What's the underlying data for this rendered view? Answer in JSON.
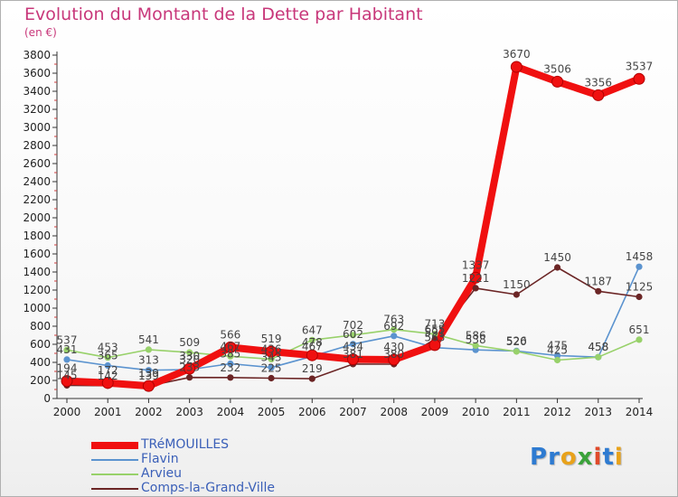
{
  "header": {
    "title": "Evolution du Montant de la Dette par Habitant",
    "unit": "(en €)"
  },
  "logo": {
    "text": "Proxiti",
    "letter_colors": [
      "#2e7bd1",
      "#2e7bd1",
      "#e8a21b",
      "#3aa23a",
      "#e04a2a",
      "#2e7bd1",
      "#e8a21b"
    ]
  },
  "chart_data": {
    "type": "line",
    "title": "Evolution du Montant de la Dette par Habitant",
    "subtitle": "(en €)",
    "xlabel": "",
    "ylabel": "",
    "x": [
      "2000",
      "2001",
      "2002",
      "2003",
      "2004",
      "2005",
      "2006",
      "2007",
      "2008",
      "2009",
      "2010",
      "2011",
      "2012",
      "2013",
      "2014"
    ],
    "ylim": [
      0,
      3800
    ],
    "yticks": [
      0,
      200,
      400,
      600,
      800,
      1000,
      1200,
      1400,
      1600,
      1800,
      2000,
      2200,
      2400,
      2600,
      2800,
      3000,
      3200,
      3400,
      3600,
      3800
    ],
    "grid": false,
    "legend_position": "bottom-left",
    "series": [
      {
        "name": "TRéMOUILLES",
        "color": "#f01010",
        "values": [
          194,
          172,
          139,
          330,
          566,
          519,
          478,
          434,
          430,
          591,
          1337,
          3670,
          3506,
          3356,
          3537
        ],
        "labels": [
          "194",
          "172",
          "139",
          "330",
          "566",
          "519",
          "478",
          "434",
          "430",
          "591",
          "1337",
          "3670",
          "3506",
          "3356",
          "3537"
        ]
      },
      {
        "name": "Flavin",
        "color": "#5b93cf",
        "values": [
          431,
          365,
          313,
          320,
          385,
          343,
          467,
          602,
          692,
          563,
          538,
          526,
          475,
          458,
          1458
        ],
        "labels": [
          "431",
          "365",
          "313",
          "320",
          "385",
          "343",
          "467",
          "602",
          "692",
          "563",
          "538",
          "526",
          "475",
          "458",
          "1458"
        ]
      },
      {
        "name": "Arvieu",
        "color": "#98d16a",
        "values": [
          537,
          453,
          541,
          509,
          467,
          436,
          647,
          702,
          763,
          713,
          586,
          520,
          425,
          458,
          651
        ],
        "labels": [
          "537",
          "453",
          "541",
          "509",
          "467",
          "436",
          "647",
          "702",
          "763",
          "713",
          "586",
          "520",
          "425",
          "458",
          "651"
        ]
      },
      {
        "name": "Comps-la-Grand-Ville",
        "color": "#6b2525",
        "values": [
          145,
          142,
          139,
          233,
          232,
          225,
          219,
          381,
          380,
          655,
          1221,
          1150,
          1450,
          1187,
          1125
        ],
        "labels": [
          "145",
          "142",
          "139",
          "233",
          "232",
          "225",
          "219",
          "381",
          "380",
          "655",
          "1221",
          "1150",
          "1450",
          "1187",
          "1125"
        ]
      }
    ]
  }
}
